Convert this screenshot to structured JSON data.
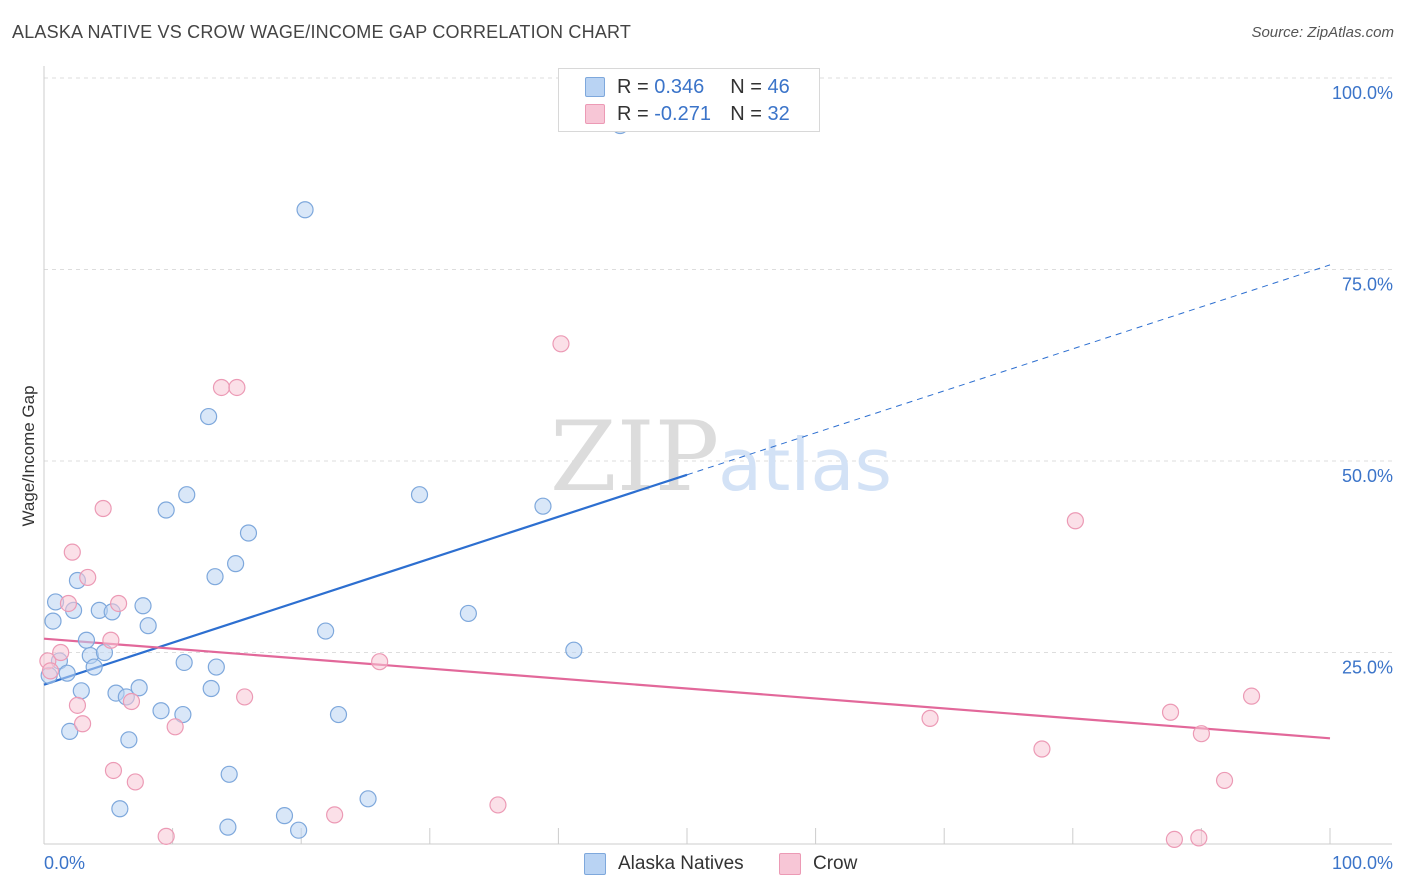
{
  "header": {
    "title": "ALASKA NATIVE VS CROW WAGE/INCOME GAP CORRELATION CHART",
    "source": "Source: ZipAtlas.com"
  },
  "legend_top": {
    "rows": [
      {
        "r_label": "R = ",
        "r_value": "0.346",
        "n_label": "N = ",
        "n_value": "46"
      },
      {
        "r_label": "R = ",
        "r_value": "-0.271",
        "n_label": "N = ",
        "n_value": "32"
      }
    ]
  },
  "watermark": {
    "zip": "ZIP",
    "atlas": "atlas"
  },
  "colors": {
    "blue_fill": "#b9d3f3",
    "blue_stroke": "#7ea8dc",
    "blue_line": "#2d6fd0",
    "pink_fill": "#f7c6d6",
    "pink_stroke": "#ec9ab5",
    "pink_line": "#e2689a",
    "tick_label": "#3b74c9",
    "grid": "#dddddd"
  },
  "chart_data": {
    "type": "scatter",
    "title": "ALASKA NATIVE VS CROW WAGE/INCOME GAP CORRELATION CHART",
    "xlabel": "",
    "ylabel": "Wage/Income Gap",
    "xlim": [
      0,
      100
    ],
    "ylim": [
      0,
      100
    ],
    "x_tick_labels": {
      "left": "0.0%",
      "right": "100.0%"
    },
    "y_ticks": [
      {
        "value": 25,
        "label": "25.0%"
      },
      {
        "value": 50,
        "label": "50.0%"
      },
      {
        "value": 75,
        "label": "75.0%"
      },
      {
        "value": 100,
        "label": "100.0%"
      }
    ],
    "grid": true,
    "legend": "bottom-center",
    "series": [
      {
        "name": "Alaska Natives",
        "R": 0.346,
        "N": 46,
        "trend": {
          "x0": 0,
          "y0": 20.8,
          "x1": 50,
          "y1": 48.2,
          "dashed_to_x": 100,
          "dashed_to_y": 75.6
        },
        "points": [
          [
            0.7,
            29.1
          ],
          [
            0.9,
            31.6
          ],
          [
            1.2,
            23.9
          ],
          [
            1.8,
            22.3
          ],
          [
            2.0,
            14.7
          ],
          [
            2.3,
            30.5
          ],
          [
            2.6,
            34.4
          ],
          [
            2.9,
            20.0
          ],
          [
            3.3,
            26.6
          ],
          [
            3.6,
            24.6
          ],
          [
            3.9,
            23.1
          ],
          [
            4.3,
            30.5
          ],
          [
            4.7,
            25.0
          ],
          [
            5.3,
            30.3
          ],
          [
            5.6,
            19.7
          ],
          [
            5.9,
            4.6
          ],
          [
            6.4,
            19.2
          ],
          [
            6.6,
            13.6
          ],
          [
            7.4,
            20.4
          ],
          [
            7.7,
            31.1
          ],
          [
            8.1,
            28.5
          ],
          [
            9.1,
            17.4
          ],
          [
            9.5,
            43.6
          ],
          [
            10.8,
            16.9
          ],
          [
            10.9,
            23.7
          ],
          [
            11.1,
            45.6
          ],
          [
            12.8,
            55.8
          ],
          [
            13.0,
            20.3
          ],
          [
            13.4,
            23.1
          ],
          [
            13.3,
            34.9
          ],
          [
            14.4,
            9.1
          ],
          [
            14.9,
            36.6
          ],
          [
            15.9,
            40.6
          ],
          [
            14.3,
            2.2
          ],
          [
            18.7,
            3.7
          ],
          [
            19.8,
            1.8
          ],
          [
            20.3,
            82.8
          ],
          [
            21.9,
            27.8
          ],
          [
            22.9,
            16.9
          ],
          [
            25.2,
            5.9
          ],
          [
            29.2,
            45.6
          ],
          [
            33.0,
            30.1
          ],
          [
            38.8,
            44.1
          ],
          [
            41.2,
            25.3
          ],
          [
            44.8,
            93.8
          ],
          [
            0.4,
            22.0
          ]
        ]
      },
      {
        "name": "Crow",
        "R": -0.271,
        "N": 32,
        "trend": {
          "x0": 0,
          "y0": 26.8,
          "x1": 100,
          "y1": 13.8
        },
        "points": [
          [
            0.3,
            23.9
          ],
          [
            0.5,
            22.6
          ],
          [
            1.3,
            25.0
          ],
          [
            1.9,
            31.4
          ],
          [
            2.2,
            38.1
          ],
          [
            2.6,
            18.1
          ],
          [
            3.0,
            15.7
          ],
          [
            3.4,
            34.8
          ],
          [
            4.6,
            43.8
          ],
          [
            5.2,
            26.6
          ],
          [
            5.4,
            9.6
          ],
          [
            5.8,
            31.4
          ],
          [
            6.8,
            18.6
          ],
          [
            7.1,
            8.1
          ],
          [
            9.5,
            1.0
          ],
          [
            10.2,
            15.3
          ],
          [
            13.8,
            59.6
          ],
          [
            15.0,
            59.6
          ],
          [
            15.6,
            19.2
          ],
          [
            22.6,
            3.8
          ],
          [
            26.1,
            23.8
          ],
          [
            35.3,
            5.1
          ],
          [
            40.2,
            65.3
          ],
          [
            68.9,
            16.4
          ],
          [
            77.6,
            12.4
          ],
          [
            80.2,
            42.2
          ],
          [
            87.6,
            17.2
          ],
          [
            87.9,
            0.6
          ],
          [
            90.0,
            14.4
          ],
          [
            89.8,
            0.8
          ],
          [
            91.8,
            8.3
          ],
          [
            93.9,
            19.3
          ]
        ]
      }
    ]
  }
}
